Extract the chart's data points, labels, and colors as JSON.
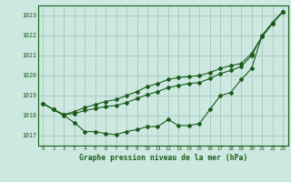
{
  "title": "Graphe pression niveau de la mer (hPa)",
  "bg_color": "#cce8e0",
  "grid_color": "#aaccc4",
  "line_color": "#1a5c1a",
  "x_labels": [
    "0",
    "1",
    "2",
    "3",
    "4",
    "5",
    "6",
    "7",
    "8",
    "9",
    "10",
    "11",
    "12",
    "13",
    "14",
    "15",
    "16",
    "17",
    "18",
    "19",
    "20",
    "21",
    "22",
    "23"
  ],
  "ylim": [
    1016.5,
    1023.5
  ],
  "yticks": [
    1017,
    1018,
    1019,
    1020,
    1021,
    1022,
    1023
  ],
  "series1": [
    1018.6,
    1018.3,
    1018.0,
    1017.65,
    1017.2,
    1017.2,
    1017.1,
    1017.05,
    1017.2,
    1017.3,
    1017.45,
    1017.45,
    1017.8,
    1017.5,
    1017.5,
    1017.6,
    1018.3,
    1019.0,
    1019.15,
    1019.8,
    1020.35,
    1022.0,
    1022.65,
    1023.2
  ],
  "series2": [
    1018.6,
    1018.3,
    1018.05,
    1018.1,
    1018.25,
    1018.35,
    1018.45,
    1018.5,
    1018.65,
    1018.85,
    1019.05,
    1019.2,
    1019.4,
    1019.5,
    1019.6,
    1019.65,
    1019.85,
    1020.1,
    1020.25,
    1020.45,
    1021.0,
    1021.95,
    1022.6,
    1023.2
  ],
  "series3": [
    1018.6,
    1018.3,
    1018.05,
    1018.2,
    1018.4,
    1018.55,
    1018.7,
    1018.8,
    1019.0,
    1019.2,
    1019.45,
    1019.6,
    1019.8,
    1019.9,
    1019.95,
    1020.0,
    1020.15,
    1020.35,
    1020.5,
    1020.6,
    1021.1,
    1021.95,
    1022.6,
    1023.2
  ]
}
